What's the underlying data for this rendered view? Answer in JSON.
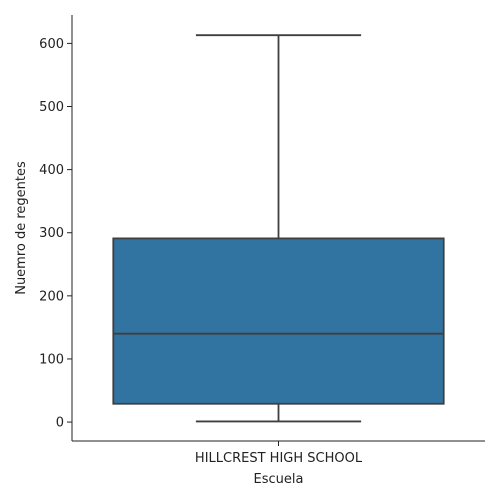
{
  "chart_data": {
    "type": "box",
    "xlabel": "Escuela",
    "ylabel": "Nuemro de regentes",
    "categories": [
      "HILLCREST HIGH SCHOOL"
    ],
    "boxes": [
      {
        "category": "HILLCREST HIGH SCHOOL",
        "whisker_low": 1,
        "q1": 29,
        "median": 140,
        "q3": 291,
        "whisker_high": 613
      }
    ],
    "ylim": [
      -30,
      645
    ],
    "yticks": [
      0,
      100,
      200,
      300,
      400,
      500,
      600
    ],
    "box_color": "#3274a1",
    "line_color": "#3f3f3f",
    "grid": false,
    "legend": "none"
  }
}
